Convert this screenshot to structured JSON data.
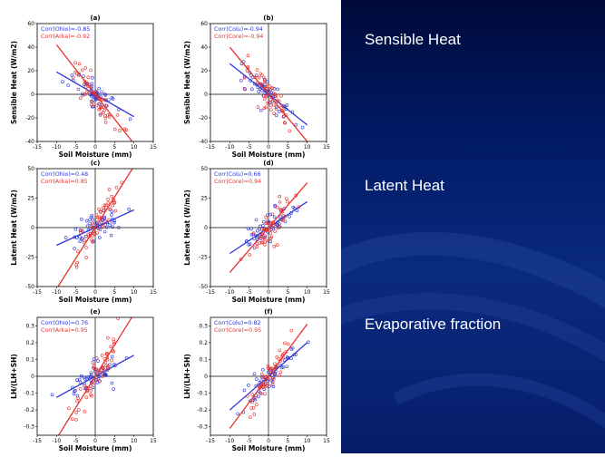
{
  "labels": {
    "sensible": "Sensible Heat",
    "latent": "Latent Heat",
    "ef": "Evaporative fraction"
  },
  "colors": {
    "blue": "#2b35d8",
    "red": "#e8302c"
  },
  "chart_data": [
    {
      "type": "scatter",
      "title": "(a)",
      "xlabel": "Soil Moisture (mm)",
      "ylabel": "Sensible Heat (W/m2)",
      "xlim": [
        -15,
        15
      ],
      "ylim": [
        -40,
        60
      ],
      "xticks": [
        -15,
        -10,
        -5,
        0,
        5,
        10,
        15
      ],
      "yticks": [
        -40,
        -20,
        0,
        20,
        40,
        60
      ],
      "series": [
        {
          "name": "Corr(Ohio)=-0.85",
          "color": "blue",
          "slope": -1.9,
          "line_x": [
            -10,
            10
          ]
        },
        {
          "name": "Corr(Arka)=-0.92",
          "color": "red",
          "slope": -4.2,
          "line_x": [
            -10,
            10
          ]
        }
      ]
    },
    {
      "type": "scatter",
      "title": "(b)",
      "xlabel": "Soil Moisture (mm)",
      "ylabel": "Sensible Heat (W/m2)",
      "xlim": [
        -15,
        15
      ],
      "ylim": [
        -40,
        60
      ],
      "xticks": [
        -15,
        -10,
        -5,
        0,
        5,
        10,
        15
      ],
      "yticks": [
        -40,
        -20,
        0,
        20,
        40,
        60
      ],
      "series": [
        {
          "name": "Corr(Colu)=-0.94",
          "color": "blue",
          "slope": -2.6,
          "line_x": [
            -10,
            10
          ]
        },
        {
          "name": "Corr(Core)=-0.94",
          "color": "red",
          "slope": -4.0,
          "line_x": [
            -10,
            10
          ]
        }
      ]
    },
    {
      "type": "scatter",
      "title": "(c)",
      "xlabel": "Soil Moisture (mm)",
      "ylabel": "Latent Heat (W/m2)",
      "xlim": [
        -15,
        15
      ],
      "ylim": [
        -50,
        50
      ],
      "xticks": [
        -15,
        -10,
        -5,
        0,
        5,
        10,
        15
      ],
      "yticks": [
        -50,
        -25,
        0,
        25,
        50
      ],
      "series": [
        {
          "name": "Corr(Ohio)=0.48",
          "color": "blue",
          "slope": 1.5,
          "line_x": [
            -10,
            10
          ]
        },
        {
          "name": "Corr(Arka)=0.85",
          "color": "red",
          "slope": 5.2,
          "line_x": [
            -10,
            10
          ]
        }
      ]
    },
    {
      "type": "scatter",
      "title": "(d)",
      "xlabel": "Soil Moisture (mm)",
      "ylabel": "Latent Heat (W/m2)",
      "xlim": [
        -15,
        15
      ],
      "ylim": [
        -50,
        50
      ],
      "xticks": [
        -15,
        -10,
        -5,
        0,
        5,
        10,
        15
      ],
      "yticks": [
        -50,
        -25,
        0,
        25,
        50
      ],
      "series": [
        {
          "name": "Corr(Colu)=0.66",
          "color": "blue",
          "slope": 2.2,
          "line_x": [
            -10,
            10
          ]
        },
        {
          "name": "Corr(Core)=0.94",
          "color": "red",
          "slope": 3.8,
          "line_x": [
            -10,
            10
          ]
        }
      ]
    },
    {
      "type": "scatter",
      "title": "(e)",
      "xlabel": "Soil Moisture (mm)",
      "ylabel": "LH/(LH+SH)",
      "xlim": [
        -15,
        15
      ],
      "ylim": [
        -0.35,
        0.35
      ],
      "xticks": [
        -15,
        -10,
        -5,
        0,
        5,
        10,
        15
      ],
      "yticks": [
        -0.3,
        -0.2,
        -0.1,
        0,
        0.1,
        0.2,
        0.3
      ],
      "series": [
        {
          "name": "Corr(Ohio)=0.76",
          "color": "blue",
          "slope": 0.0125,
          "line_x": [
            -10,
            10
          ]
        },
        {
          "name": "Corr(Arka)=0.95",
          "color": "red",
          "slope": 0.037,
          "line_x": [
            -10,
            10
          ]
        }
      ]
    },
    {
      "type": "scatter",
      "title": "(f)",
      "xlabel": "Soil Moisture (mm)",
      "ylabel": "LH/(LH+SH)",
      "xlim": [
        -15,
        15
      ],
      "ylim": [
        -0.35,
        0.35
      ],
      "xticks": [
        -15,
        -10,
        -5,
        0,
        5,
        10,
        15
      ],
      "yticks": [
        -0.3,
        -0.2,
        -0.1,
        0,
        0.1,
        0.2,
        0.3
      ],
      "series": [
        {
          "name": "Corr(Colu)=0.82",
          "color": "blue",
          "slope": 0.02,
          "line_x": [
            -10,
            10
          ]
        },
        {
          "name": "Corr(Core)=0.95",
          "color": "red",
          "slope": 0.031,
          "line_x": [
            -10,
            10
          ]
        }
      ]
    }
  ]
}
